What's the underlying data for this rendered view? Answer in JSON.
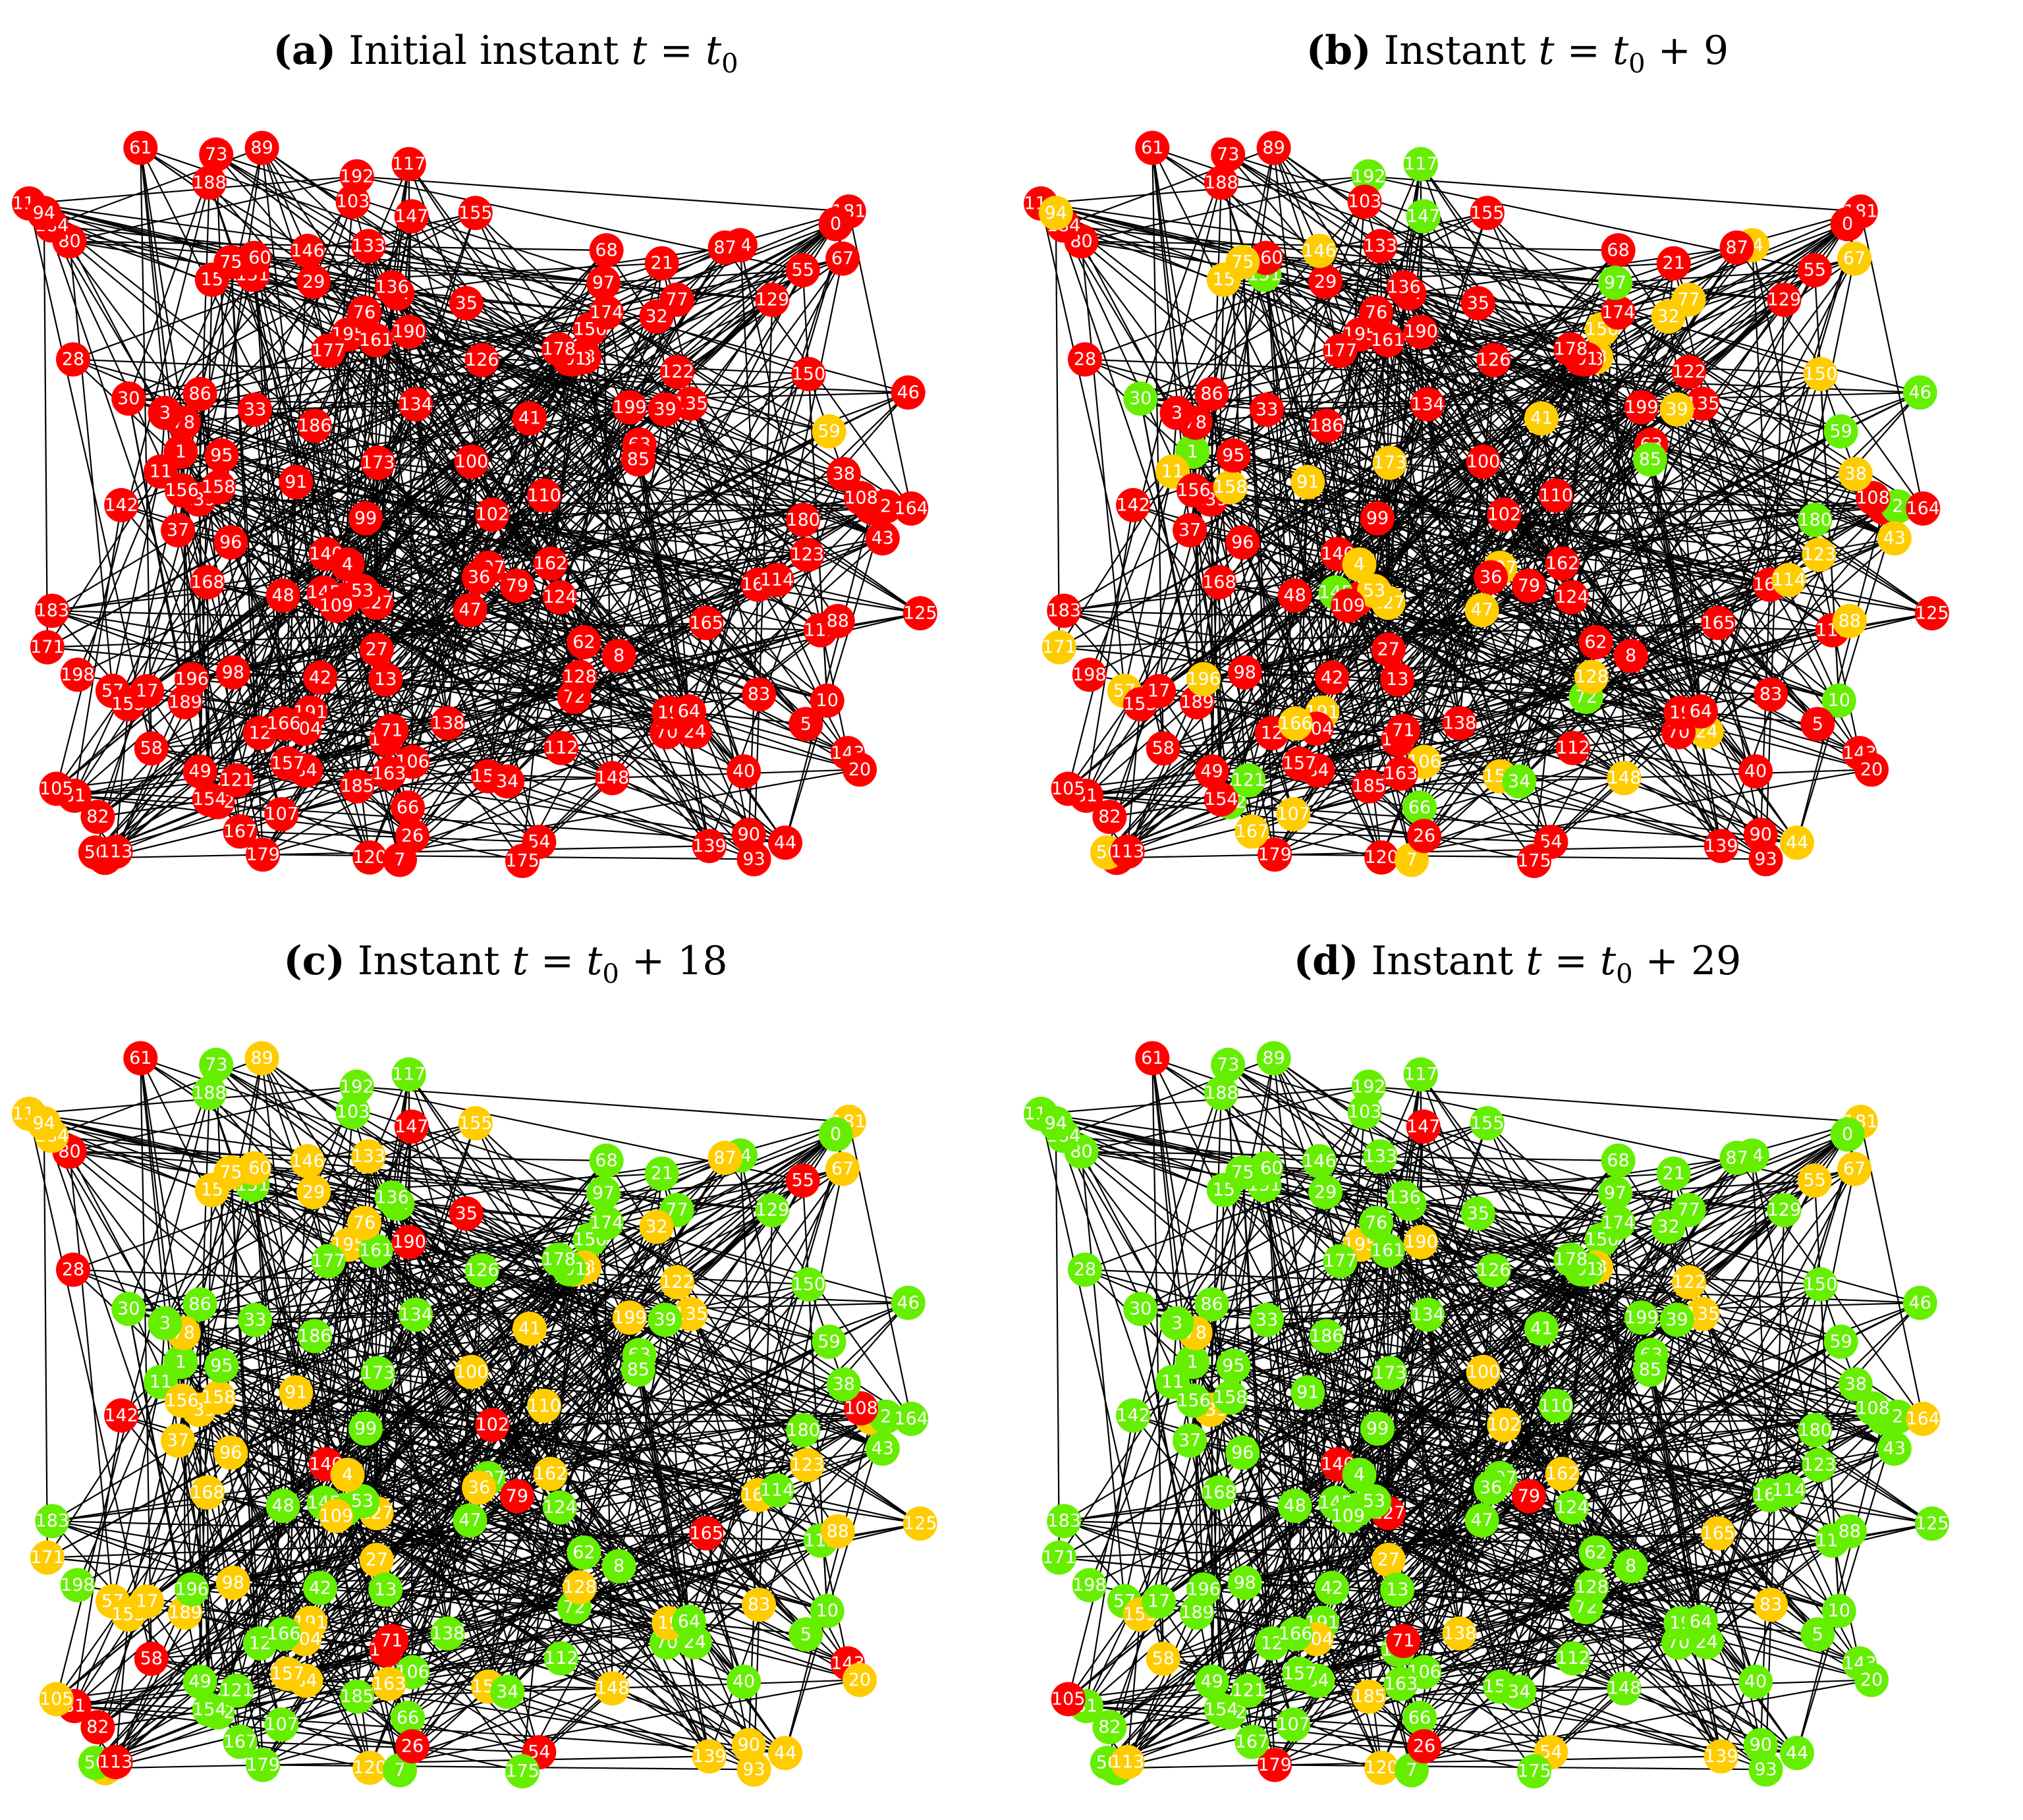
{
  "colors": {
    "red": "#ff0000",
    "yellow": "#ffcc00",
    "green": "#66ee00",
    "edge": "#000000",
    "label": "#ffffff"
  },
  "panels": [
    {
      "letter": "(a)",
      "text": "Initial instant",
      "eq_var": "t",
      "eq_op": "=",
      "eq_rhs": "t",
      "eq_sub": "0",
      "eq_tail": ""
    },
    {
      "letter": "(b)",
      "text": "Instant",
      "eq_var": "t",
      "eq_op": "=",
      "eq_rhs": "t",
      "eq_sub": "0",
      "eq_tail": "+ 9"
    },
    {
      "letter": "(c)",
      "text": "Instant",
      "eq_var": "t",
      "eq_op": "=",
      "eq_rhs": "t",
      "eq_sub": "0",
      "eq_tail": "+ 18"
    },
    {
      "letter": "(d)",
      "text": "Instant",
      "eq_var": "t",
      "eq_op": "=",
      "eq_rhs": "t",
      "eq_sub": "0",
      "eq_tail": "+ 29"
    }
  ],
  "node_labels": [
    "65",
    "41",
    "124",
    "179",
    "173",
    "91",
    "14",
    "170",
    "51",
    "80",
    "47",
    "68",
    "2",
    "143",
    "44",
    "191",
    "129",
    "57",
    "190",
    "181",
    "135",
    "140",
    "127",
    "133",
    "153",
    "66",
    "72",
    "128",
    "84",
    "116",
    "106",
    "82",
    "12",
    "169",
    "0",
    "112",
    "187",
    "110",
    "28",
    "77",
    "54",
    "164",
    "90",
    "168",
    "145",
    "167",
    "46",
    "195",
    "185",
    "119",
    "150",
    "30",
    "62",
    "10",
    "35",
    "29",
    "126",
    "15",
    "8",
    "172",
    "40",
    "165",
    "146",
    "186",
    "182",
    "120",
    "151",
    "7",
    "180",
    "88",
    "171",
    "104",
    "139",
    "154",
    "177",
    "152",
    "42",
    "162",
    "5",
    "53",
    "199",
    "108",
    "198",
    "1",
    "197",
    "20",
    "55",
    "148",
    "61",
    "81",
    "138",
    "160",
    "96",
    "125",
    "4",
    "121",
    "102",
    "24",
    "17",
    "86",
    "75",
    "32",
    "192",
    "184",
    "139",
    "114",
    "27",
    "103",
    "48",
    "73",
    "189",
    "99",
    "161",
    "63",
    "78",
    "183",
    "21",
    "188",
    "23",
    "163",
    "36",
    "43",
    "94",
    "85",
    "70",
    "118",
    "122",
    "33",
    "67",
    "79",
    "158",
    "107",
    "3",
    "38",
    "56",
    "13",
    "19",
    "49",
    "89",
    "142",
    "134",
    "34",
    "175",
    "11",
    "105",
    "95",
    "76",
    "71",
    "58",
    "174",
    "39",
    "147",
    "100",
    "93",
    "64",
    "109",
    "156",
    "117",
    "59",
    "98",
    "26",
    "196",
    "87",
    "101",
    "37",
    "155",
    "123",
    "97",
    "83",
    "150",
    "166",
    "157",
    "178",
    "113",
    "136"
  ],
  "node_states": {
    "a": {
      "default": "red",
      "yellow": [
        "59"
      ],
      "green": []
    },
    "b": {
      "default": "red",
      "yellow": [
        "191",
        "57",
        "41",
        "91",
        "14",
        "173",
        "47",
        "127",
        "106",
        "167",
        "72",
        "128",
        "77",
        "15",
        "171",
        "88",
        "146",
        "53",
        "197",
        "24",
        "32",
        "152",
        "7",
        "88",
        "148",
        "44",
        "75",
        "94",
        "43",
        "23",
        "67",
        "107",
        "158",
        "56",
        "38",
        "39",
        "11",
        "196",
        "74",
        "59",
        "123",
        "150",
        "166",
        "114",
        "4"
      ],
      "green": [
        "2",
        "145",
        "46",
        "10",
        "30",
        "66",
        "72",
        "151",
        "172",
        "180",
        "121",
        "192",
        "85",
        "34",
        "97",
        "117",
        "1",
        "147",
        "59"
      ]
    },
    "c": {
      "default": "green",
      "yellow": [
        "65",
        "41",
        "181",
        "135",
        "91",
        "191",
        "57",
        "153",
        "84",
        "116",
        "128",
        "127",
        "133",
        "44",
        "90",
        "195",
        "15",
        "168",
        "169",
        "187",
        "29",
        "171",
        "120",
        "4",
        "146",
        "165",
        "104",
        "152",
        "162",
        "88",
        "96",
        "125",
        "78",
        "199",
        "32",
        "75",
        "184",
        "20",
        "148",
        "139",
        "27",
        "36",
        "163",
        "23",
        "189",
        "94",
        "89",
        "118",
        "122",
        "67",
        "158",
        "19",
        "110",
        "105",
        "98",
        "156",
        "87",
        "37",
        "155",
        "83",
        "76",
        "74",
        "123",
        "17",
        "100",
        "93",
        "109",
        "157",
        "160",
        "132",
        "193"
      ],
      "red": [
        "190",
        "80",
        "82",
        "143",
        "140",
        "28",
        "54",
        "182",
        "35",
        "55",
        "102",
        "108",
        "61",
        "81",
        "142",
        "79",
        "147",
        "71",
        "58",
        "26",
        "190",
        "113",
        "165"
      ]
    },
    "d": {
      "default": "green",
      "yellow": [
        "190",
        "181",
        "135",
        "153",
        "164",
        "54",
        "195",
        "185",
        "60",
        "120",
        "165",
        "162",
        "102",
        "55",
        "139",
        "27",
        "78",
        "23",
        "58",
        "67",
        "122",
        "132",
        "100",
        "83",
        "113",
        "138",
        "104"
      ],
      "red": [
        "127",
        "140",
        "179",
        "61",
        "79",
        "147",
        "71",
        "26",
        "105"
      ]
    }
  }
}
